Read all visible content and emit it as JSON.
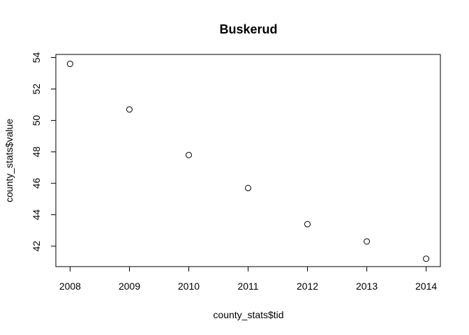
{
  "chart_data": {
    "type": "scatter",
    "title": "Buskerud",
    "xlabel": "county_stats$tid",
    "ylabel": "county_stats$value",
    "x": [
      2008,
      2009,
      2010,
      2011,
      2012,
      2013,
      2014
    ],
    "y": [
      53.6,
      50.7,
      47.8,
      45.7,
      43.4,
      42.3,
      41.2
    ],
    "xlim": [
      2007.76,
      2014.24
    ],
    "ylim": [
      40.7,
      54.2
    ],
    "x_ticks": [
      2008,
      2009,
      2010,
      2011,
      2012,
      2013,
      2014
    ],
    "y_ticks": [
      42,
      44,
      46,
      48,
      50,
      52,
      54
    ],
    "grid": false,
    "marker": "open-circle",
    "colors": {
      "points": "#000000",
      "axes": "#000000",
      "background": "#ffffff"
    }
  }
}
